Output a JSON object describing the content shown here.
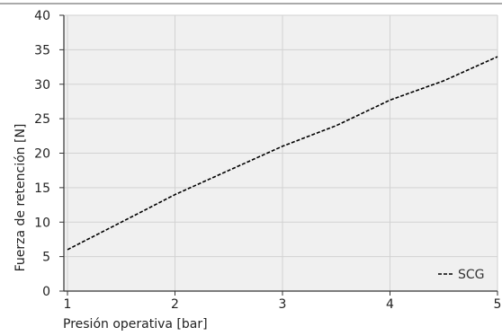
{
  "chart_data": {
    "type": "line",
    "title": "",
    "xlabel": "Presión operativa [bar]",
    "ylabel": "Fuerza de retención [N]",
    "xlim": [
      1,
      5
    ],
    "ylim": [
      0,
      40
    ],
    "x_ticks": [
      1,
      2,
      3,
      4,
      5
    ],
    "y_ticks": [
      0,
      5,
      10,
      15,
      20,
      25,
      30,
      35,
      40
    ],
    "grid": true,
    "legend_position": "bottom-right",
    "series": [
      {
        "name": "SCG",
        "line_style": "dashed",
        "color": "#000000",
        "x": [
          1,
          1.5,
          2,
          2.5,
          3,
          3.5,
          4,
          4.5,
          5
        ],
        "y": [
          6,
          10,
          14,
          17.5,
          21,
          24,
          27.7,
          30.5,
          34
        ]
      }
    ]
  },
  "colors": {
    "plot_background": "#f0f0f0",
    "grid": "#d2d2d2",
    "axis": "#333333"
  }
}
